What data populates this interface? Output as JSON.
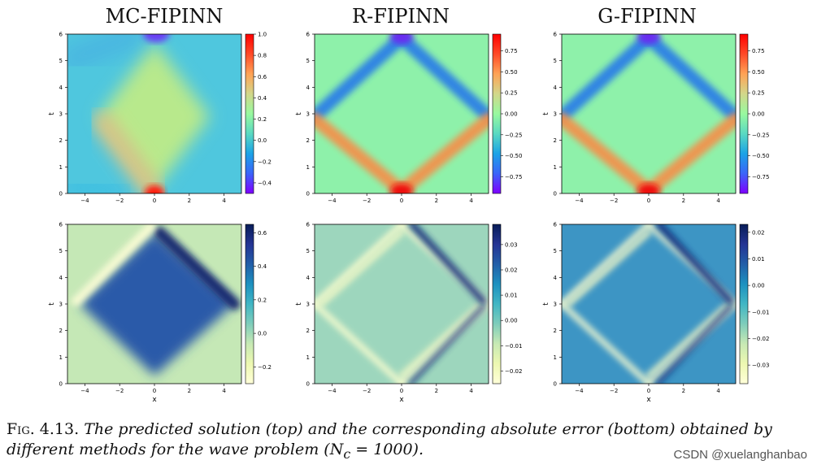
{
  "columns": [
    "MC-FIPINN",
    "R-FIPINN",
    "G-FIPINN"
  ],
  "caption": {
    "lead": "Fig. 4.13.",
    "text": "The predicted solution (top) and the corresponding absolute error (bottom) obtained by different methods for the wave problem (N",
    "sub": "c",
    "tail": " = 1000)."
  },
  "watermark": "CSDN @xuelanghanbao",
  "chart_data": [
    {
      "type": "heatmap",
      "title": "MC-FIPINN",
      "row": "top",
      "ylabel": "t",
      "xlabel": "",
      "colormap": "rainbow",
      "xlim": [
        -5,
        5
      ],
      "ylim": [
        0,
        6
      ],
      "xticks": [
        "−4",
        "−2",
        "0",
        "2",
        "4"
      ],
      "yticks": [
        "0",
        "1",
        "2",
        "3",
        "4",
        "5",
        "6"
      ],
      "clim": [
        -0.5,
        1.0
      ],
      "cbar_ticks": [
        1.0,
        0.8,
        0.6,
        0.4,
        0.2,
        0.0,
        -0.2,
        -0.4
      ],
      "cbar_labels": [
        "1.0",
        "0.8",
        "0.6",
        "0.4",
        "0.2",
        "0.0",
        "−0.2",
        "−0.4"
      ]
    },
    {
      "type": "heatmap",
      "title": "R-FIPINN",
      "row": "top",
      "ylabel": "t",
      "xlabel": "",
      "colormap": "rainbow",
      "xlim": [
        -5,
        5
      ],
      "ylim": [
        0,
        6
      ],
      "xticks": [
        "−4",
        "−2",
        "0",
        "2",
        "4"
      ],
      "yticks": [
        "0",
        "1",
        "2",
        "3",
        "4",
        "5",
        "6"
      ],
      "clim": [
        -0.95,
        0.95
      ],
      "cbar_ticks": [
        0.75,
        0.5,
        0.25,
        0.0,
        -0.25,
        -0.5,
        -0.75
      ],
      "cbar_labels": [
        "0.75",
        "0.50",
        "0.25",
        "0.00",
        "−0.25",
        "−0.50",
        "−0.75"
      ]
    },
    {
      "type": "heatmap",
      "title": "G-FIPINN",
      "row": "top",
      "ylabel": "t",
      "xlabel": "",
      "colormap": "rainbow",
      "xlim": [
        -5,
        5
      ],
      "ylim": [
        0,
        6
      ],
      "xticks": [
        "−4",
        "−2",
        "0",
        "2",
        "4"
      ],
      "yticks": [
        "0",
        "1",
        "2",
        "3",
        "4",
        "5",
        "6"
      ],
      "clim": [
        -0.95,
        0.95
      ],
      "cbar_ticks": [
        0.75,
        0.5,
        0.25,
        0.0,
        -0.25,
        -0.5,
        -0.75
      ],
      "cbar_labels": [
        "0.75",
        "0.50",
        "0.25",
        "0.00",
        "−0.25",
        "−0.50",
        "−0.75"
      ]
    },
    {
      "type": "heatmap",
      "title": "",
      "row": "bottom",
      "ylabel": "t",
      "xlabel": "x",
      "colormap": "YlGnBu",
      "xlim": [
        -5,
        5
      ],
      "ylim": [
        0,
        6
      ],
      "xticks": [
        "−4",
        "−2",
        "0",
        "2",
        "4"
      ],
      "yticks": [
        "0",
        "1",
        "2",
        "3",
        "4",
        "5",
        "6"
      ],
      "clim": [
        -0.3,
        0.65
      ],
      "cbar_ticks": [
        0.6,
        0.4,
        0.2,
        0.0,
        -0.2
      ],
      "cbar_labels": [
        "0.6",
        "0.4",
        "0.2",
        "0.0",
        "−0.2"
      ]
    },
    {
      "type": "heatmap",
      "title": "",
      "row": "bottom",
      "ylabel": "t",
      "xlabel": "x",
      "colormap": "YlGnBu",
      "xlim": [
        -5,
        5
      ],
      "ylim": [
        0,
        6
      ],
      "xticks": [
        "−4",
        "−2",
        "0",
        "2",
        "4"
      ],
      "yticks": [
        "0",
        "1",
        "2",
        "3",
        "4",
        "5",
        "6"
      ],
      "clim": [
        -0.025,
        0.038
      ],
      "cbar_ticks": [
        0.03,
        0.02,
        0.01,
        0.0,
        -0.01,
        -0.02
      ],
      "cbar_labels": [
        "0.03",
        "0.02",
        "0.01",
        "0.00",
        "−0.01",
        "−0.02"
      ]
    },
    {
      "type": "heatmap",
      "title": "",
      "row": "bottom",
      "ylabel": "t",
      "xlabel": "x",
      "colormap": "YlGnBu",
      "xlim": [
        -5,
        5
      ],
      "ylim": [
        0,
        6
      ],
      "xticks": [
        "−4",
        "−2",
        "0",
        "2",
        "4"
      ],
      "yticks": [
        "0",
        "1",
        "2",
        "3",
        "4",
        "5",
        "6"
      ],
      "clim": [
        -0.037,
        0.023
      ],
      "cbar_ticks": [
        0.02,
        0.01,
        0.0,
        -0.01,
        -0.02,
        -0.03
      ],
      "cbar_labels": [
        "0.02",
        "0.01",
        "0.00",
        "−0.01",
        "−0.02",
        "−0.03"
      ]
    }
  ]
}
